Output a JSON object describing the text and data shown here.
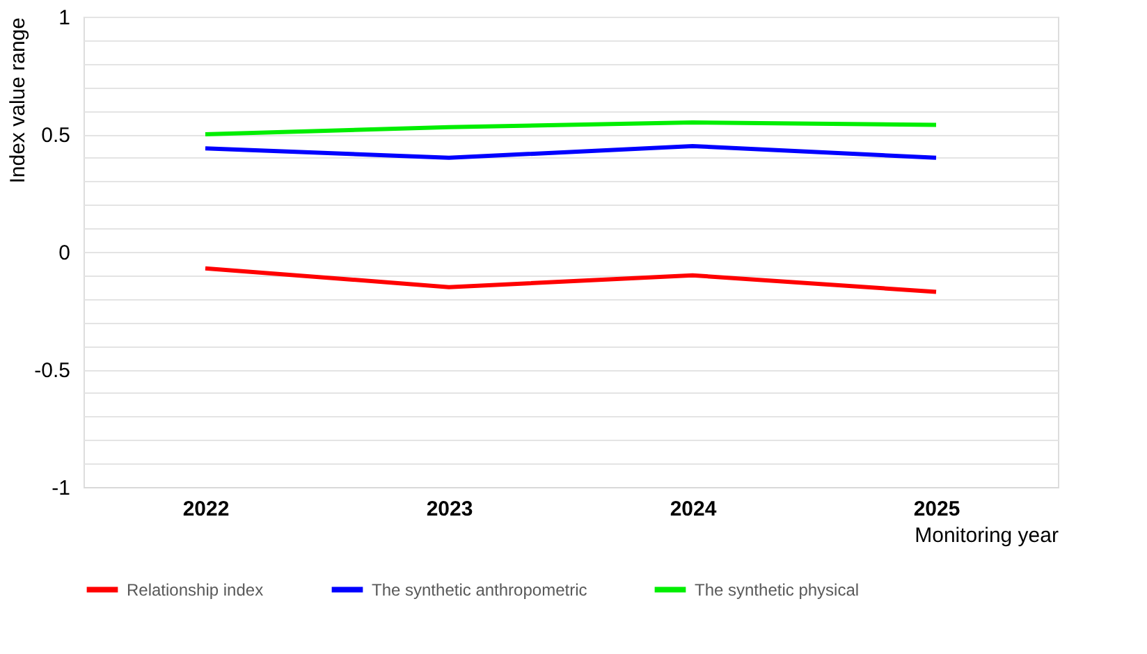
{
  "chart_data": {
    "type": "line",
    "xlabel": "Monitoring year",
    "ylabel": "Index value range",
    "categories": [
      "2022",
      "2023",
      "2024",
      "2025"
    ],
    "series": [
      {
        "name": "Relationship index",
        "color": "#ff0000",
        "values": [
          -0.07,
          -0.15,
          -0.1,
          -0.17
        ]
      },
      {
        "name": "The synthetic anthropometric",
        "color": "#0000ff",
        "values": [
          0.44,
          0.4,
          0.45,
          0.4
        ]
      },
      {
        "name": "The synthetic physical",
        "color": "#00ee00",
        "values": [
          0.5,
          0.53,
          0.55,
          0.54
        ]
      }
    ],
    "ylim": [
      -1,
      1
    ],
    "yticks": [
      -1,
      {
        "value": -0.9,
        "label": null
      },
      {
        "value": -0.8,
        "label": null
      },
      {
        "value": -0.7,
        "label": null
      },
      {
        "value": -0.6,
        "label": null
      },
      -0.5,
      {
        "value": -0.4,
        "label": null
      },
      {
        "value": -0.3,
        "label": null
      },
      {
        "value": -0.2,
        "label": null
      },
      {
        "value": -0.1,
        "label": null
      },
      0,
      {
        "value": 0.1,
        "label": null
      },
      {
        "value": 0.2,
        "label": null
      },
      {
        "value": 0.3,
        "label": null
      },
      {
        "value": 0.4,
        "label": null
      },
      0.5,
      {
        "value": 0.6,
        "label": null
      },
      {
        "value": 0.7,
        "label": null
      },
      {
        "value": 0.8,
        "label": null
      },
      {
        "value": 0.9,
        "label": null
      },
      1
    ],
    "grid": "y",
    "legend": "bottom",
    "marker": "none",
    "line_style": "solid"
  }
}
